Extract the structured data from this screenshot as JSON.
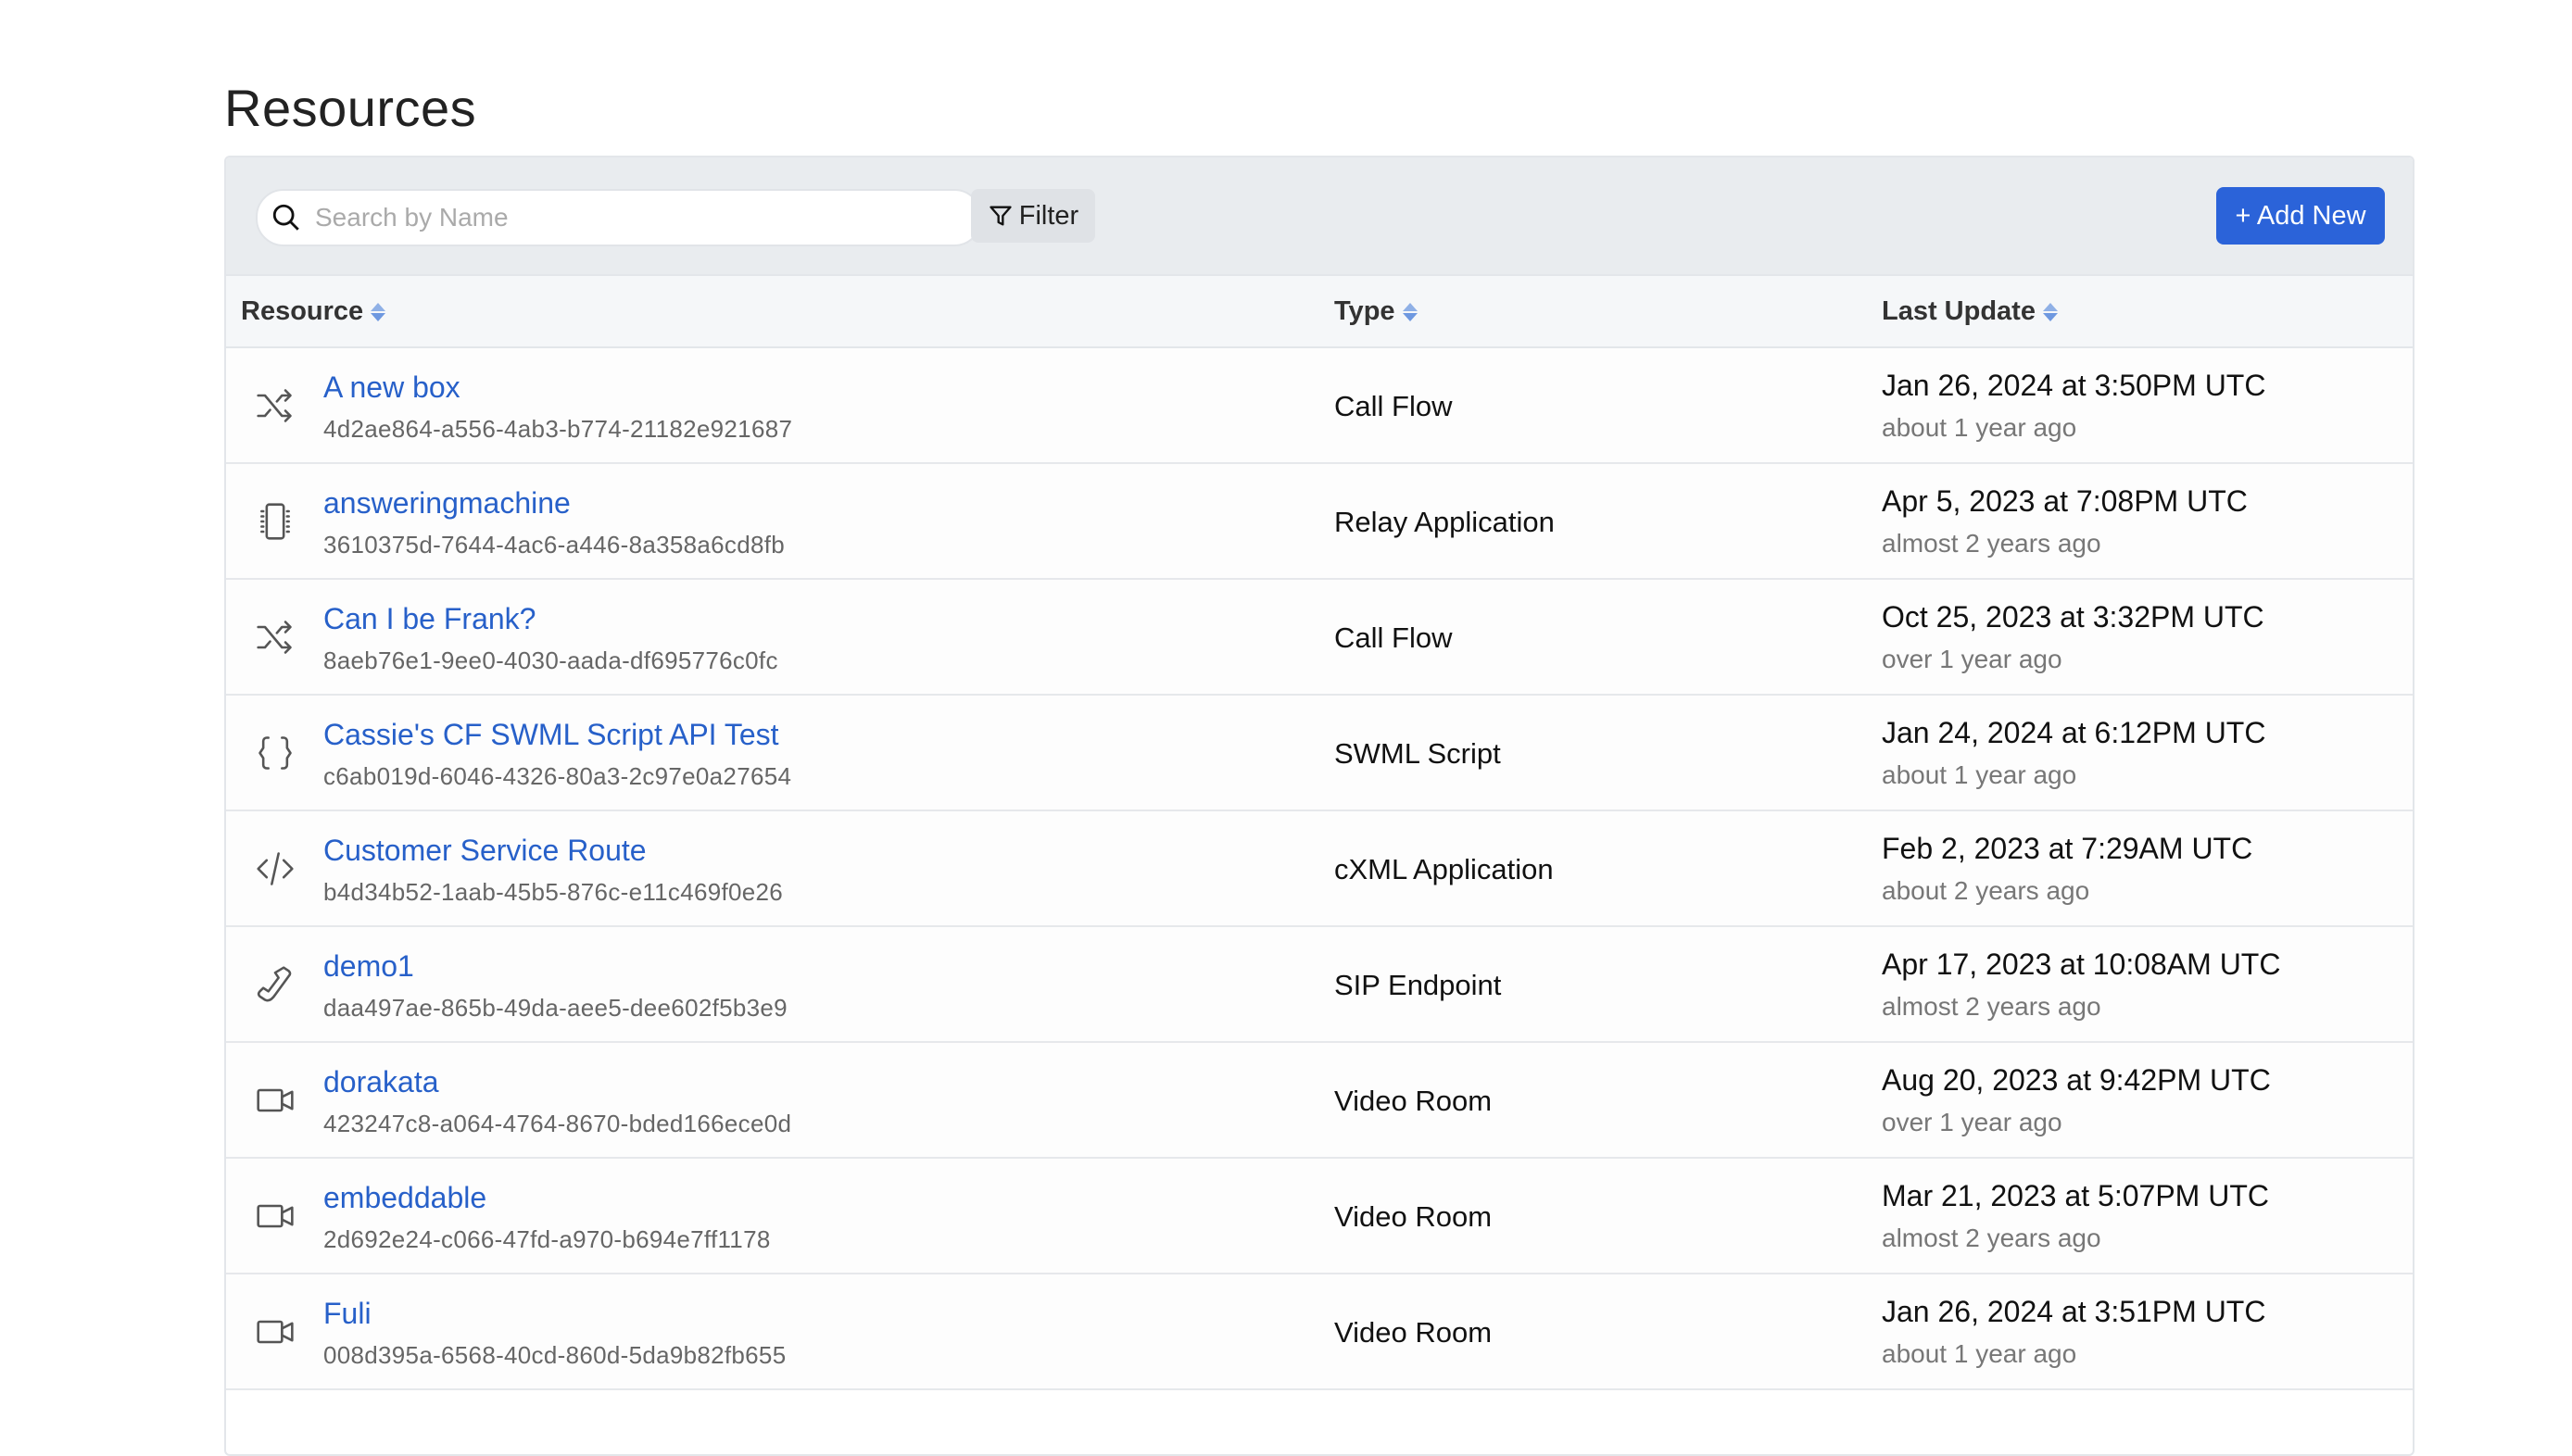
{
  "page": {
    "title": "Resources"
  },
  "toolbar": {
    "search_placeholder": "Search by Name",
    "search_value": "",
    "filter_label": "Filter",
    "add_new_label": "+ Add New",
    "accent_color": "#2b63d9"
  },
  "table": {
    "columns": [
      "Resource",
      "Type",
      "Last Update"
    ],
    "rows": [
      {
        "icon": "shuffle-icon",
        "name": "A new box",
        "id": "4d2ae864-a556-4ab3-b774-21182e921687",
        "type": "Call Flow",
        "date": "Jan 26, 2024 at 3:50PM UTC",
        "ago": "about 1 year ago"
      },
      {
        "icon": "chip-icon",
        "name": "answeringmachine",
        "id": "3610375d-7644-4ac6-a446-8a358a6cd8fb",
        "type": "Relay Application",
        "date": "Apr 5, 2023 at 7:08PM UTC",
        "ago": "almost 2 years ago"
      },
      {
        "icon": "shuffle-icon",
        "name": "Can I be Frank?",
        "id": "8aeb76e1-9ee0-4030-aada-df695776c0fc",
        "type": "Call Flow",
        "date": "Oct 25, 2023 at 3:32PM UTC",
        "ago": "over 1 year ago"
      },
      {
        "icon": "braces-icon",
        "name": "Cassie's CF SWML Script API Test",
        "id": "c6ab019d-6046-4326-80a3-2c97e0a27654",
        "type": "SWML Script",
        "date": "Jan 24, 2024 at 6:12PM UTC",
        "ago": "about 1 year ago"
      },
      {
        "icon": "code-icon",
        "name": "Customer Service Route",
        "id": "b4d34b52-1aab-45b5-876c-e11c469f0e26",
        "type": "cXML Application",
        "date": "Feb 2, 2023 at 7:29AM UTC",
        "ago": "about 2 years ago"
      },
      {
        "icon": "phone-icon",
        "name": "demo1",
        "id": "daa497ae-865b-49da-aee5-dee602f5b3e9",
        "type": "SIP Endpoint",
        "date": "Apr 17, 2023 at 10:08AM UTC",
        "ago": "almost 2 years ago"
      },
      {
        "icon": "video-icon",
        "name": "dorakata",
        "id": "423247c8-a064-4764-8670-bded166ece0d",
        "type": "Video Room",
        "date": "Aug 20, 2023 at 9:42PM UTC",
        "ago": "over 1 year ago"
      },
      {
        "icon": "video-icon",
        "name": "embeddable",
        "id": "2d692e24-c066-47fd-a970-b694e7ff1178",
        "type": "Video Room",
        "date": "Mar 21, 2023 at 5:07PM UTC",
        "ago": "almost 2 years ago"
      },
      {
        "icon": "video-icon",
        "name": "Fuli",
        "id": "008d395a-6568-40cd-860d-5da9b82fb655",
        "type": "Video Room",
        "date": "Jan 26, 2024 at 3:51PM UTC",
        "ago": "about 1 year ago"
      }
    ]
  }
}
